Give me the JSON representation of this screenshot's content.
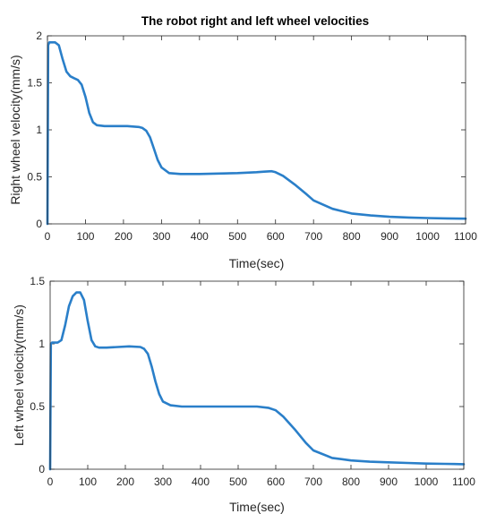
{
  "figure": {
    "title": "The robot right and left wheel velocities"
  },
  "chart_data": [
    {
      "type": "line",
      "title": "The robot right and left wheel velocities",
      "xlabel": "Time(sec)",
      "ylabel": "Right wheel velocity(mm/s)",
      "xlim": [
        0,
        1100
      ],
      "ylim": [
        0,
        2
      ],
      "xticks": [
        "0",
        "100",
        "200",
        "300",
        "400",
        "500",
        "600",
        "700",
        "800",
        "900",
        "1000",
        "1100"
      ],
      "yticks": [
        "0",
        "0.5",
        "1",
        "1.5",
        "2"
      ],
      "grid": false,
      "color": "#2a7fc9",
      "series": [
        {
          "x": [
            0,
            2,
            5,
            10,
            20,
            30,
            40,
            50,
            60,
            70,
            80,
            90,
            100,
            110,
            120,
            130,
            150,
            180,
            210,
            240,
            250,
            260,
            270,
            280,
            290,
            300,
            320,
            350,
            400,
            450,
            500,
            550,
            570,
            590,
            600,
            620,
            650,
            680,
            700,
            750,
            800,
            850,
            900,
            950,
            1000,
            1050,
            1100
          ],
          "y": [
            0,
            1.9,
            1.93,
            1.93,
            1.93,
            1.9,
            1.75,
            1.62,
            1.57,
            1.55,
            1.53,
            1.48,
            1.35,
            1.18,
            1.08,
            1.05,
            1.04,
            1.04,
            1.04,
            1.03,
            1.02,
            0.99,
            0.92,
            0.8,
            0.68,
            0.6,
            0.54,
            0.53,
            0.53,
            0.535,
            0.54,
            0.55,
            0.555,
            0.56,
            0.55,
            0.51,
            0.42,
            0.32,
            0.25,
            0.16,
            0.11,
            0.09,
            0.075,
            0.068,
            0.062,
            0.058,
            0.055
          ]
        }
      ]
    },
    {
      "type": "line",
      "xlabel": "Time(sec)",
      "ylabel": "Left wheel velocity(mm/s)",
      "xlim": [
        0,
        1100
      ],
      "ylim": [
        0,
        1.5
      ],
      "xticks": [
        "0",
        "100",
        "200",
        "300",
        "400",
        "500",
        "600",
        "700",
        "800",
        "900",
        "1000",
        "1100"
      ],
      "yticks": [
        "0",
        "0.5",
        "1",
        "1.5"
      ],
      "grid": false,
      "color": "#2a7fc9",
      "series": [
        {
          "x": [
            0,
            2,
            5,
            10,
            20,
            30,
            40,
            50,
            60,
            70,
            80,
            90,
            100,
            110,
            120,
            130,
            150,
            180,
            210,
            240,
            250,
            260,
            270,
            280,
            290,
            300,
            320,
            350,
            400,
            450,
            500,
            550,
            580,
            600,
            620,
            650,
            680,
            700,
            750,
            800,
            850,
            900,
            950,
            1000,
            1050,
            1100
          ],
          "y": [
            0,
            1.0,
            1.01,
            1.01,
            1.01,
            1.03,
            1.15,
            1.3,
            1.38,
            1.41,
            1.41,
            1.35,
            1.18,
            1.03,
            0.98,
            0.97,
            0.97,
            0.975,
            0.98,
            0.975,
            0.96,
            0.92,
            0.82,
            0.7,
            0.6,
            0.54,
            0.51,
            0.5,
            0.5,
            0.5,
            0.5,
            0.5,
            0.49,
            0.47,
            0.42,
            0.32,
            0.21,
            0.15,
            0.09,
            0.07,
            0.06,
            0.055,
            0.05,
            0.045,
            0.043,
            0.04
          ]
        }
      ]
    }
  ]
}
